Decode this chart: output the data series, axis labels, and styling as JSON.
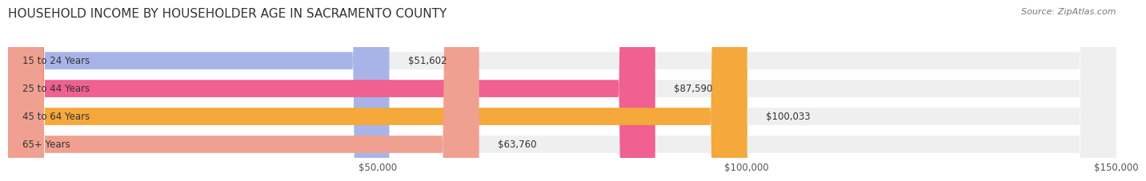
{
  "title": "HOUSEHOLD INCOME BY HOUSEHOLDER AGE IN SACRAMENTO COUNTY",
  "source": "Source: ZipAtlas.com",
  "categories": [
    "15 to 24 Years",
    "25 to 44 Years",
    "45 to 64 Years",
    "65+ Years"
  ],
  "values": [
    51602,
    87590,
    100033,
    63760
  ],
  "bar_colors": [
    "#a8b4e8",
    "#f06090",
    "#f5a83c",
    "#f0a090"
  ],
  "bar_bg_color": "#efefef",
  "value_labels": [
    "$51,602",
    "$87,590",
    "$100,033",
    "$63,760"
  ],
  "xlim": [
    0,
    150000
  ],
  "xticks": [
    0,
    50000,
    100000,
    150000
  ],
  "xtick_labels": [
    "",
    "$50,000",
    "$100,000",
    "$150,000"
  ],
  "title_fontsize": 11,
  "source_fontsize": 8,
  "label_fontsize": 8.5,
  "value_fontsize": 8.5,
  "tick_fontsize": 8.5,
  "background_color": "#ffffff",
  "grid_color": "#cccccc"
}
